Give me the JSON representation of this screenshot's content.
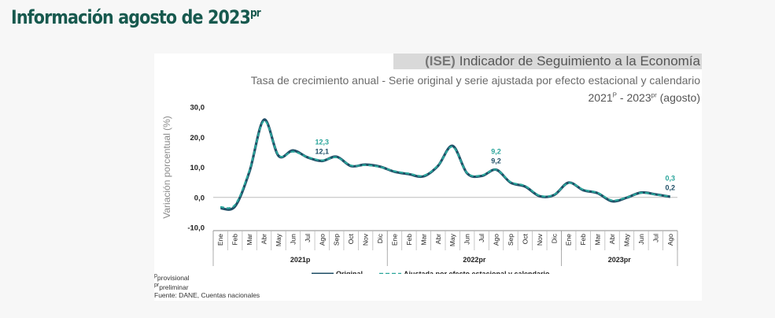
{
  "page": {
    "heading": "Información agosto de 2023",
    "heading_sup": "pr"
  },
  "chart_data": {
    "type": "line",
    "title_abbr": "(ISE)",
    "title": "Indicador de Seguimiento a la Economía",
    "subtitle": "Tasa de crecimiento anual - Serie original y serie ajustada por efecto estacional y calendario",
    "period": {
      "start": "2021",
      "start_sup": "P",
      "sep": " - ",
      "end": "2023",
      "end_sup": "pr",
      "note": " (agosto)"
    },
    "ylabel": "Variación porcentual (%)",
    "ylim": [
      -10,
      30
    ],
    "yticks": [
      "30,0",
      "20,0",
      "10,0",
      "0,0",
      "-10,0"
    ],
    "ytick_values": [
      30,
      20,
      10,
      0,
      -10
    ],
    "years": [
      {
        "label": "2021p",
        "months": [
          "Ene",
          "Feb",
          "Mar",
          "Abr",
          "May",
          "Jun",
          "Jul",
          "Ago",
          "Sep",
          "Oct",
          "Nov",
          "Dic"
        ]
      },
      {
        "label": "2022pr",
        "months": [
          "Ene",
          "Feb",
          "Mar",
          "Abr",
          "May",
          "Jun",
          "Jul",
          "Ago",
          "Sep",
          "Oct",
          "Nov",
          "Dic"
        ]
      },
      {
        "label": "2023pr",
        "months": [
          "Ene",
          "Feb",
          "Mar",
          "Abr",
          "May",
          "Jun",
          "Jul",
          "Ago"
        ]
      }
    ],
    "series": [
      {
        "name": "Original",
        "color": "#1f4e66",
        "values": [
          -3.6,
          -3.0,
          8.6,
          25.8,
          13.8,
          15.6,
          13.3,
          12.1,
          13.5,
          10.4,
          10.9,
          10.2,
          8.5,
          7.7,
          7.0,
          10.5,
          17.1,
          8.0,
          7.1,
          9.2,
          4.9,
          3.6,
          0.4,
          0.8,
          4.9,
          2.4,
          1.4,
          -1.3,
          -0.1,
          1.6,
          1.0,
          0.2
        ]
      },
      {
        "name": "Ajustada por efecto estacional y calendario",
        "color": "#2aa59b",
        "values": [
          -3.2,
          -2.5,
          9.0,
          25.4,
          14.0,
          15.2,
          13.4,
          12.3,
          13.3,
          10.6,
          10.7,
          10.1,
          8.7,
          7.9,
          7.2,
          10.6,
          16.8,
          8.1,
          7.3,
          9.2,
          5.1,
          3.8,
          0.6,
          0.9,
          4.8,
          2.6,
          1.5,
          -1.0,
          0.0,
          1.5,
          0.9,
          0.3
        ]
      }
    ],
    "annotations": [
      {
        "index": 7,
        "adjusted": "12,3",
        "original": "12,1"
      },
      {
        "index": 19,
        "adjusted": "9,2",
        "original": "9,2"
      },
      {
        "index": 31,
        "adjusted": "0,3",
        "original": "0,2"
      }
    ],
    "legend_position": "bottom",
    "grid": false
  },
  "notes": {
    "provisional_sup": "p",
    "provisional": "provisional",
    "preliminar_sup": "pr",
    "preliminar": "preliminar",
    "source": "Fuente: DANE, Cuentas nacionales"
  }
}
